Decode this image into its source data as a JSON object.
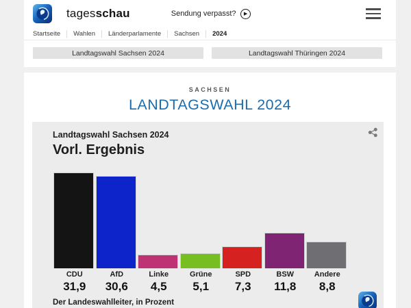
{
  "header": {
    "brand": {
      "regular": "tages",
      "bold": "schau"
    },
    "watch_label": "Sendung verpasst?",
    "breadcrumbs": [
      {
        "label": "Startseite"
      },
      {
        "label": "Wahlen"
      },
      {
        "label": "Länderparlamente"
      },
      {
        "label": "Sachsen"
      },
      {
        "label": "2024"
      }
    ]
  },
  "election_nav": {
    "buttons": [
      {
        "label": "Landtagswahl Sachsen 2024"
      },
      {
        "label": "Landtagswahl Thüringen 2024"
      }
    ]
  },
  "main": {
    "kicker": "SACHSEN",
    "title": "LANDTAGSWAHL 2024"
  },
  "chart_data": {
    "type": "bar",
    "kicker": "Landtagswahl Sachsen 2024",
    "title": "Vorl. Ergebnis",
    "categories": [
      "CDU",
      "AfD",
      "Linke",
      "Grüne",
      "SPD",
      "BSW",
      "Andere"
    ],
    "values": [
      31.9,
      30.6,
      4.5,
      5.1,
      7.3,
      11.8,
      8.8
    ],
    "value_labels": [
      "31,9",
      "30,6",
      "4,5",
      "5,1",
      "7,3",
      "11,8",
      "8,8"
    ],
    "bar_colors": [
      "#141414",
      "#0d24cb",
      "#be3374",
      "#77be21",
      "#d52221",
      "#7e2472",
      "#6f6f73"
    ],
    "ylabel": "Prozent",
    "ylim": [
      0,
      32
    ],
    "grid": false,
    "legend": false,
    "source": "Der Landeswahlleiter, in Prozent"
  },
  "icons": {
    "play": "▶",
    "menu": "hamburger-3-lines",
    "share": "share-nodes",
    "logo": "tagesschau-globe"
  },
  "colors": {
    "accent_blue": "#1b6cad",
    "page_bg": "#f0f0f1",
    "card_bg": "#ffffff",
    "chart_bg": "#ececec",
    "button_bg": "#e2e2e2"
  }
}
